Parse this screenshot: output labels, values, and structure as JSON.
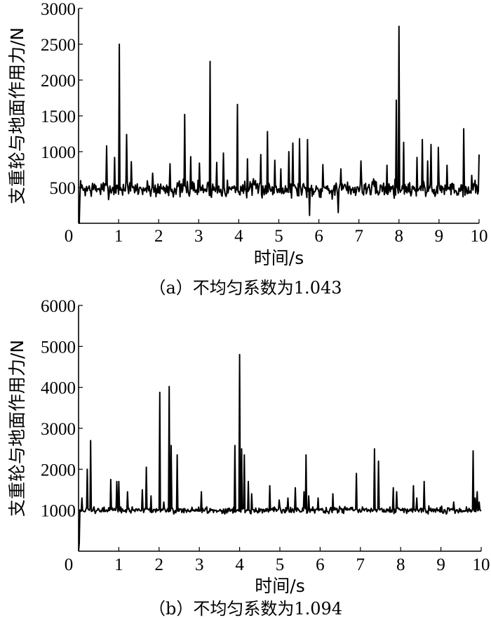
{
  "chart_data": [
    {
      "type": "line",
      "caption": "（a）不均匀系数为1.043",
      "xlabel": "时间/s",
      "ylabel": "支重轮与地面作用力/N",
      "xlim": [
        0,
        10
      ],
      "ylim": [
        0,
        3000
      ],
      "xticks": [
        "0",
        "1",
        "2",
        "3",
        "4",
        "5",
        "6",
        "7",
        "8",
        "9",
        "10"
      ],
      "yticks": [
        "500",
        "1000",
        "1500",
        "2000",
        "2500",
        "3000"
      ],
      "grid": false,
      "baseline_mean": 480,
      "baseline_noise": 90,
      "peaks": [
        [
          0.7,
          1080
        ],
        [
          0.9,
          920
        ],
        [
          1.02,
          2500
        ],
        [
          1.2,
          1240
        ],
        [
          1.32,
          860
        ],
        [
          1.85,
          700
        ],
        [
          2.28,
          830
        ],
        [
          2.65,
          1520
        ],
        [
          2.8,
          930
        ],
        [
          3.02,
          840
        ],
        [
          3.28,
          2260
        ],
        [
          3.45,
          850
        ],
        [
          3.62,
          980
        ],
        [
          3.97,
          1660
        ],
        [
          4.22,
          900
        ],
        [
          4.55,
          960
        ],
        [
          4.72,
          1280
        ],
        [
          4.9,
          880
        ],
        [
          5.05,
          760
        ],
        [
          5.25,
          1000
        ],
        [
          5.35,
          1120
        ],
        [
          5.52,
          1180
        ],
        [
          5.72,
          1170
        ],
        [
          6.1,
          820
        ],
        [
          6.55,
          760
        ],
        [
          7.05,
          870
        ],
        [
          7.7,
          810
        ],
        [
          7.93,
          1720
        ],
        [
          8.0,
          2750
        ],
        [
          8.12,
          1130
        ],
        [
          8.45,
          920
        ],
        [
          8.58,
          1170
        ],
        [
          8.72,
          870
        ],
        [
          8.8,
          1100
        ],
        [
          8.98,
          1060
        ],
        [
          9.2,
          810
        ],
        [
          9.62,
          1320
        ],
        [
          9.82,
          670
        ],
        [
          10.0,
          960
        ]
      ],
      "dips": [
        [
          5.76,
          110
        ],
        [
          6.48,
          150
        ],
        [
          0.02,
          0
        ]
      ]
    },
    {
      "type": "line",
      "caption": "（b）不均匀系数为1.094",
      "xlabel": "时间/s",
      "ylabel": "支重轮与地面作用力/N",
      "xlim": [
        0,
        10
      ],
      "ylim": [
        0,
        6000
      ],
      "xticks": [
        "0",
        "1",
        "2",
        "3",
        "4",
        "5",
        "6",
        "7",
        "8",
        "9",
        "10"
      ],
      "yticks": [
        "1000",
        "2000",
        "3000",
        "4000",
        "5000",
        "6000"
      ],
      "grid": false,
      "baseline_mean": 1000,
      "baseline_noise": 60,
      "peaks": [
        [
          0.08,
          1300
        ],
        [
          0.22,
          2000
        ],
        [
          0.3,
          2700
        ],
        [
          0.8,
          1750
        ],
        [
          0.95,
          1700
        ],
        [
          1.0,
          1700
        ],
        [
          1.22,
          1450
        ],
        [
          1.58,
          1500
        ],
        [
          1.68,
          2050
        ],
        [
          1.8,
          1350
        ],
        [
          2.02,
          3880
        ],
        [
          2.12,
          1200
        ],
        [
          2.25,
          4020
        ],
        [
          2.3,
          2580
        ],
        [
          2.45,
          2350
        ],
        [
          3.05,
          1450
        ],
        [
          3.88,
          2580
        ],
        [
          4.0,
          4800
        ],
        [
          4.05,
          2500
        ],
        [
          4.12,
          2350
        ],
        [
          4.22,
          1700
        ],
        [
          4.3,
          1400
        ],
        [
          4.75,
          1600
        ],
        [
          4.98,
          1250
        ],
        [
          5.2,
          1300
        ],
        [
          5.38,
          1550
        ],
        [
          5.6,
          1450
        ],
        [
          5.65,
          2350
        ],
        [
          5.72,
          1350
        ],
        [
          5.95,
          1300
        ],
        [
          6.32,
          1400
        ],
        [
          6.9,
          1900
        ],
        [
          7.35,
          2500
        ],
        [
          7.45,
          2200
        ],
        [
          7.82,
          1550
        ],
        [
          7.9,
          1450
        ],
        [
          8.32,
          1600
        ],
        [
          8.4,
          1300
        ],
        [
          8.58,
          1700
        ],
        [
          9.32,
          1200
        ],
        [
          9.8,
          2450
        ],
        [
          9.85,
          1300
        ],
        [
          9.9,
          1450
        ],
        [
          9.95,
          1200
        ]
      ],
      "dips": [
        [
          0.02,
          200
        ]
      ]
    }
  ]
}
